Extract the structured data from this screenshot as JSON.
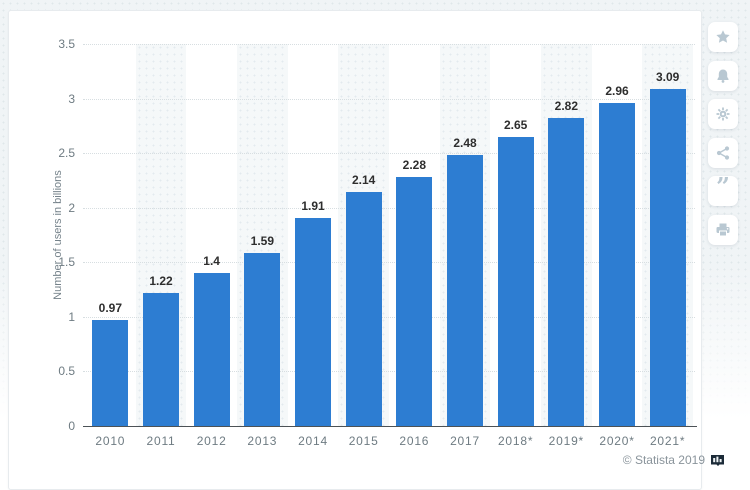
{
  "chart_data": {
    "type": "bar",
    "title": "",
    "xlabel": "",
    "ylabel": "Number of users in billions",
    "categories": [
      "2010",
      "2011",
      "2012",
      "2013",
      "2014",
      "2015",
      "2016",
      "2017",
      "2018*",
      "2019*",
      "2020*",
      "2021*"
    ],
    "values": [
      0.97,
      1.22,
      1.4,
      1.59,
      1.91,
      2.14,
      2.28,
      2.48,
      2.65,
      2.82,
      2.96,
      3.09
    ],
    "value_labels": [
      "0.97",
      "1.22",
      "1.4",
      "1.59",
      "1.91",
      "2.14",
      "2.28",
      "2.48",
      "2.65",
      "2.82",
      "2.96",
      "3.09"
    ],
    "ylim": [
      0,
      3.5
    ],
    "yticks": [
      "3.5",
      "3",
      "2.5",
      "2",
      "1.5",
      "1",
      "0.5",
      "0"
    ],
    "grid": "horizontal dotted lines, alternating vertical category bands",
    "legend": "none",
    "bar_color": "#2d7dd2"
  },
  "toolbar": {
    "buttons": [
      {
        "name": "favorite",
        "icon": "star-icon"
      },
      {
        "name": "alerts",
        "icon": "bell-icon"
      },
      {
        "name": "settings",
        "icon": "gear-icon"
      },
      {
        "name": "share",
        "icon": "share-icon"
      },
      {
        "name": "cite",
        "icon": "quote-icon"
      },
      {
        "name": "print",
        "icon": "printer-icon"
      }
    ]
  },
  "footer": {
    "copyright": "© Statista 2019"
  },
  "colors": {
    "bar": "#2d7dd2",
    "page_background": "#f0f4f6",
    "card_background": "#ffffff",
    "gridline": "#d7dee1",
    "axis_line": "#4c5256",
    "tick_text": "#6e7b82",
    "value_label_text": "#2e2e2e",
    "footer_text": "#8a949b",
    "toolbar_icon": "#b9c8d2",
    "statista_mark": "#1c2b38"
  }
}
